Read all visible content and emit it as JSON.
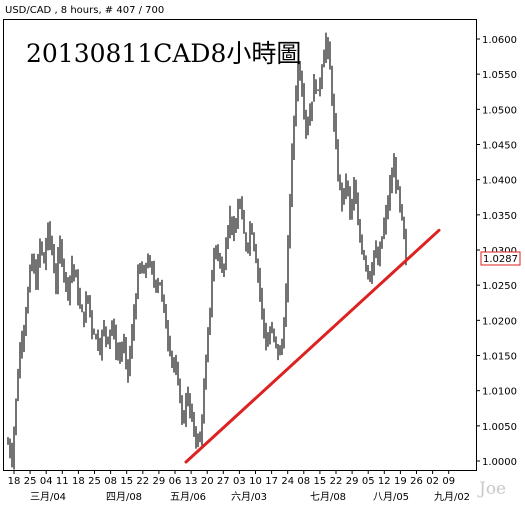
{
  "header": {
    "symbol_info": "USD/CAD , 8 hours, # 407 / 700",
    "annotation_title": "20130811CAD8小時圖",
    "watermark": "Joe"
  },
  "chart_data": {
    "type": "line",
    "title": "20130811CAD8小時圖",
    "subtitle": "USD/CAD , 8 hours, # 407 / 700",
    "xlabel": "",
    "ylabel": "",
    "ylim": [
      0.998,
      1.0615
    ],
    "grid": false,
    "y_ticks": [
      "1.0000",
      "1.0050",
      "1.0100",
      "1.0150",
      "1.0200",
      "1.0250",
      "1.0300",
      "1.0350",
      "1.0400",
      "1.0450",
      "1.0500",
      "1.0550",
      "1.0600"
    ],
    "x_day_ticks": [
      "18",
      "25",
      "04",
      "11",
      "18",
      "25",
      "08",
      "15",
      "22",
      "29",
      "06",
      "13",
      "20",
      "27",
      "03",
      "10",
      "17",
      "24",
      "08",
      "15",
      "22",
      "29",
      "05",
      "12",
      "19",
      "26",
      "02",
      "09"
    ],
    "x_month_ticks": [
      "三月/04",
      "四月/08",
      "五月/06",
      "六月/03",
      "七月/08",
      "八月/05",
      "九月/02"
    ],
    "current_price": "1.0287",
    "series": [
      {
        "values": [
          1.0025,
          1.0005,
          1.0085,
          1.016,
          1.019,
          1.024,
          1.029,
          1.025,
          1.031,
          1.028,
          1.033,
          1.03,
          1.025,
          1.031,
          1.027,
          1.024,
          1.028,
          1.026,
          1.022,
          1.02,
          1.024,
          1.019,
          1.018,
          1.016,
          1.019,
          1.017,
          1.02,
          1.016,
          1.015,
          1.017,
          1.012,
          1.017,
          1.023,
          1.028,
          1.026,
          1.029,
          1.027,
          1.025,
          1.026,
          1.022,
          1.018,
          1.015,
          1.013,
          1.01,
          1.005,
          1.01,
          1.006,
          1.004,
          1.002,
          1.008,
          1.016,
          1.024,
          1.031,
          1.029,
          1.026,
          1.033,
          1.035,
          1.031,
          1.038,
          1.033,
          1.03,
          1.034,
          1.03,
          1.026,
          1.02,
          1.016,
          1.019,
          1.017,
          1.015,
          1.017,
          1.025,
          1.04,
          1.05,
          1.057,
          1.052,
          1.047,
          1.05,
          1.054,
          1.052,
          1.057,
          1.06,
          1.055,
          1.047,
          1.04,
          1.037,
          1.04,
          1.035,
          1.039,
          1.033,
          1.03,
          1.028,
          1.026,
          1.03,
          1.028,
          1.032,
          1.035,
          1.039,
          1.042,
          1.038,
          1.034,
          1.0287
        ],
        "style": "black OHLC bars"
      }
    ],
    "annotations": [
      {
        "type": "trendline",
        "color": "#dd2222",
        "from": [
          1.0
        ],
        "to": [
          1.0328
        ]
      }
    ]
  }
}
